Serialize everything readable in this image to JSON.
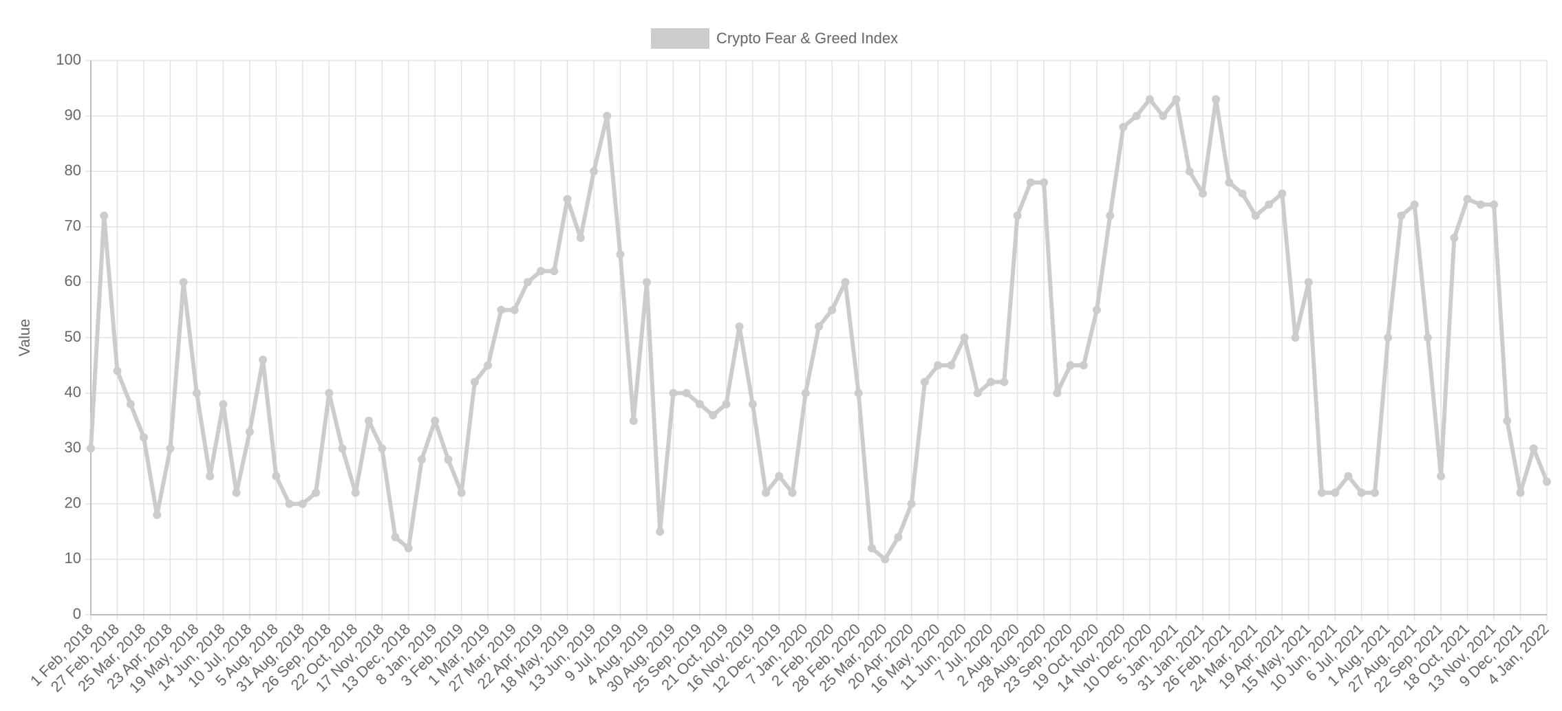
{
  "chart_data": {
    "type": "line",
    "y_label": "Value",
    "categories": [
      "1 Feb, 2018",
      null,
      "27 Feb, 2018",
      null,
      "25 Mar, 2018",
      null,
      "23 Apr, 2018",
      null,
      "19 May, 2018",
      null,
      "14 Jun, 2018",
      null,
      "10 Jul, 2018",
      null,
      "5 Aug, 2018",
      null,
      "31 Aug, 2018",
      null,
      "26 Sep, 2018",
      null,
      "22 Oct, 2018",
      null,
      "17 Nov, 2018",
      null,
      "13 Dec, 2018",
      null,
      "8 Jan, 2019",
      null,
      "3 Feb, 2019",
      null,
      "1 Mar, 2019",
      null,
      "27 Mar, 2019",
      null,
      "22 Apr, 2019",
      null,
      "18 May, 2019",
      null,
      "13 Jun, 2019",
      null,
      "9 Jul, 2019",
      null,
      "4 Aug, 2019",
      null,
      "30 Aug, 2019",
      null,
      "25 Sep, 2019",
      null,
      "21 Oct, 2019",
      null,
      "16 Nov, 2019",
      null,
      "12 Dec, 2019",
      null,
      "7 Jan, 2020",
      null,
      "2 Feb, 2020",
      null,
      "28 Feb, 2020",
      null,
      "25 Mar, 2020",
      null,
      "20 Apr, 2020",
      null,
      "16 May, 2020",
      null,
      "11 Jun, 2020",
      null,
      "7 Jul, 2020",
      null,
      "2 Aug, 2020",
      null,
      "28 Aug, 2020",
      null,
      "23 Sep, 2020",
      null,
      "19 Oct, 2020",
      null,
      "14 Nov, 2020",
      null,
      "10 Dec, 2020",
      null,
      "5 Jan, 2021",
      null,
      "31 Jan, 2021",
      null,
      "26 Feb, 2021",
      null,
      "24 Mar, 2021",
      null,
      "19 Apr, 2021",
      null,
      "15 May, 2021",
      null,
      "10 Jun, 2021",
      null,
      "6 Jul, 2021",
      null,
      "1 Aug, 2021",
      null,
      "27 Aug, 2021",
      null,
      "22 Sep, 2021",
      null,
      "18 Oct, 2021",
      null,
      "13 Nov, 2021",
      null,
      "9 Dec, 2021",
      null,
      "4 Jan, 2022"
    ],
    "series": [
      {
        "name": "Crypto Fear & Greed Index",
        "color": "#cccccc",
        "values": [
          30,
          72,
          44,
          38,
          32,
          18,
          30,
          60,
          40,
          25,
          38,
          22,
          33,
          46,
          25,
          20,
          20,
          22,
          40,
          30,
          22,
          35,
          30,
          14,
          12,
          28,
          35,
          28,
          22,
          42,
          45,
          55,
          55,
          60,
          62,
          62,
          75,
          68,
          80,
          90,
          65,
          35,
          60,
          15,
          40,
          40,
          38,
          36,
          38,
          52,
          38,
          22,
          25,
          22,
          40,
          52,
          55,
          60,
          40,
          12,
          10,
          14,
          20,
          42,
          45,
          45,
          50,
          40,
          42,
          42,
          72,
          78,
          78,
          40,
          45,
          45,
          55,
          72,
          88,
          90,
          93,
          90,
          93,
          80,
          76,
          93,
          78,
          76,
          72,
          74,
          76,
          50,
          60,
          22,
          22,
          25,
          22,
          22,
          50,
          72,
          74,
          50,
          25,
          68,
          75,
          74,
          74,
          35,
          22,
          30,
          24
        ]
      }
    ],
    "ylim": [
      0,
      100
    ],
    "yticks": [
      0,
      10,
      20,
      30,
      40,
      50,
      60,
      70,
      80,
      90,
      100
    ],
    "grid": true,
    "legend": "top"
  }
}
